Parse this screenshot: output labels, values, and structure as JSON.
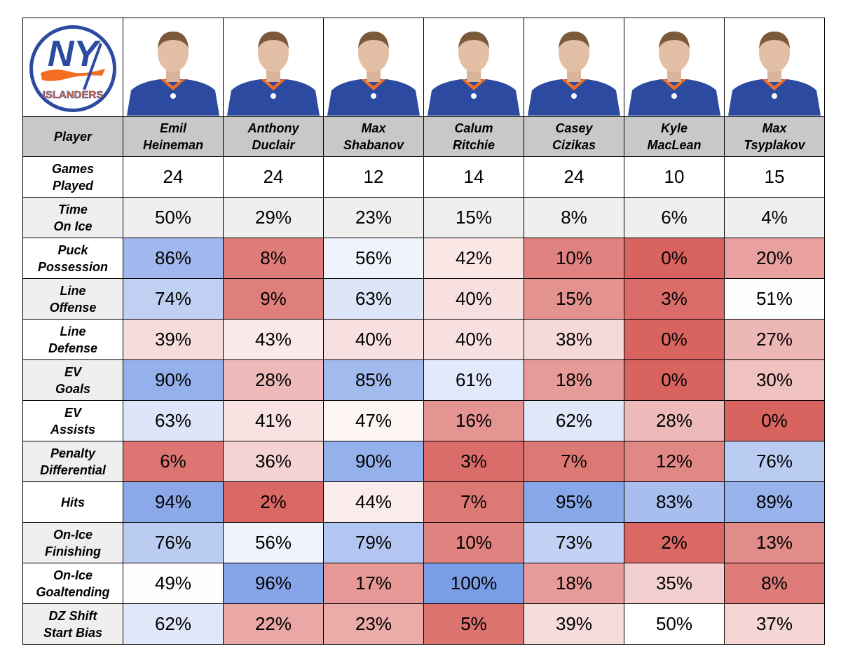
{
  "chart_data": {
    "type": "table",
    "team": "Islanders",
    "logo_text": "NY ISLANDERS",
    "header_label": "Player",
    "players": [
      "Emil\nHeineman",
      "Anthony\nDuclair",
      "Max\nShabanov",
      "Calum\nRitchie",
      "Casey\nCizikas",
      "Kyle\nMacLean",
      "Max\nTsyplakov"
    ],
    "rows": [
      {
        "label": "Games\nPlayed",
        "shaded": false,
        "colored": false,
        "values": [
          "24",
          "24",
          "12",
          "14",
          "24",
          "10",
          "15"
        ]
      },
      {
        "label": "Time\nOn Ice",
        "shaded": true,
        "colored": false,
        "values": [
          "50%",
          "29%",
          "23%",
          "15%",
          "8%",
          "6%",
          "4%"
        ]
      },
      {
        "label": "Puck\nPossession",
        "shaded": false,
        "colored": true,
        "values": [
          "86%",
          "8%",
          "56%",
          "42%",
          "10%",
          "0%",
          "20%"
        ]
      },
      {
        "label": "Line\nOffense",
        "shaded": true,
        "colored": true,
        "values": [
          "74%",
          "9%",
          "63%",
          "40%",
          "15%",
          "3%",
          "51%"
        ]
      },
      {
        "label": "Line\nDefense",
        "shaded": false,
        "colored": true,
        "values": [
          "39%",
          "43%",
          "40%",
          "40%",
          "38%",
          "0%",
          "27%"
        ]
      },
      {
        "label": "EV\nGoals",
        "shaded": true,
        "colored": true,
        "values": [
          "90%",
          "28%",
          "85%",
          "61%",
          "18%",
          "0%",
          "30%"
        ]
      },
      {
        "label": "EV\nAssists",
        "shaded": false,
        "colored": true,
        "values": [
          "63%",
          "41%",
          "47%",
          "16%",
          "62%",
          "28%",
          "0%"
        ]
      },
      {
        "label": "Penalty\nDifferential",
        "shaded": true,
        "colored": true,
        "values": [
          "6%",
          "36%",
          "90%",
          "3%",
          "7%",
          "12%",
          "76%"
        ]
      },
      {
        "label": "Hits",
        "shaded": false,
        "colored": true,
        "values": [
          "94%",
          "2%",
          "44%",
          "7%",
          "95%",
          "83%",
          "89%"
        ]
      },
      {
        "label": "On-Ice\nFinishing",
        "shaded": true,
        "colored": true,
        "values": [
          "76%",
          "56%",
          "79%",
          "10%",
          "73%",
          "2%",
          "13%"
        ]
      },
      {
        "label": "On-Ice\nGoaltending",
        "shaded": false,
        "colored": true,
        "values": [
          "49%",
          "96%",
          "17%",
          "100%",
          "18%",
          "35%",
          "8%"
        ]
      },
      {
        "label": "DZ Shift\nStart Bias",
        "shaded": true,
        "colored": true,
        "values": [
          "62%",
          "22%",
          "23%",
          "5%",
          "39%",
          "50%",
          "37%"
        ]
      }
    ],
    "color_scale": {
      "low": "#d8635f",
      "mid": "#ffffff",
      "high": "#7b9de6"
    }
  },
  "colors": {
    "header_bg": "#c8c8c8",
    "label_bg_shaded": "#efefef",
    "jersey": "#2b4aa0",
    "orange": "#f26d21"
  }
}
